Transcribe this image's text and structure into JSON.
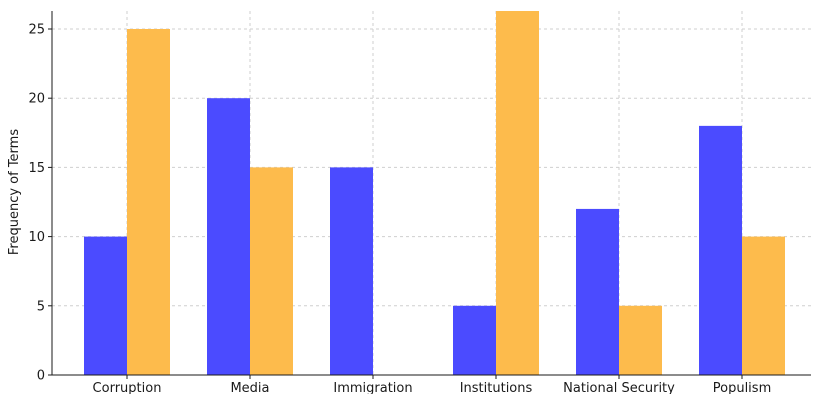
{
  "chart_data": {
    "type": "bar",
    "title": "",
    "xlabel": "",
    "ylabel": "Frequency of Terms",
    "categories": [
      "Corruption",
      "Media",
      "Immigration",
      "Institutions",
      "National Security",
      "Populism"
    ],
    "series": [
      {
        "values": [
          10,
          20,
          15,
          5,
          12,
          18
        ],
        "color": "#4b4bff"
      },
      {
        "values": [
          25,
          15,
          0,
          28,
          5,
          10
        ],
        "color": "#fdbb4c"
      }
    ],
    "ylim": [
      0,
      26.3
    ],
    "yticks": [
      0,
      5,
      10,
      15,
      20,
      25
    ],
    "grid": true,
    "legend": "none"
  }
}
